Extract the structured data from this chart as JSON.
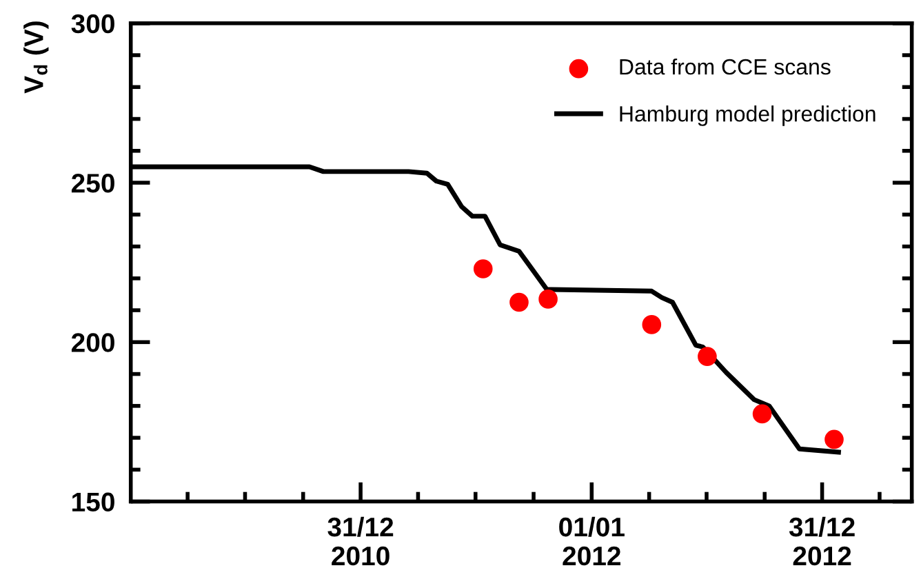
{
  "chart_data": {
    "type": "line",
    "ylabel": "V$_{d}$ (V)",
    "xlim": [
      "2010-01-01",
      "2013-05-22"
    ],
    "ylim": [
      150,
      300
    ],
    "xticks": [
      {
        "value": "2010-04-01",
        "label": null
      },
      {
        "value": "2010-07-01",
        "label": null
      },
      {
        "value": "2010-10-01",
        "label": null
      },
      {
        "value": "2010-12-31",
        "label": "31/12\n2010"
      },
      {
        "value": "2011-04-01",
        "label": null
      },
      {
        "value": "2011-07-01",
        "label": null
      },
      {
        "value": "2011-10-01",
        "label": null
      },
      {
        "value": "2012-01-01",
        "label": "01/01\n2012"
      },
      {
        "value": "2012-04-01",
        "label": null
      },
      {
        "value": "2012-07-01",
        "label": null
      },
      {
        "value": "2012-10-01",
        "label": null
      },
      {
        "value": "2012-12-31",
        "label": "31/12\n2012"
      },
      {
        "value": "2013-04-01",
        "label": null
      }
    ],
    "yticks": [
      150,
      {
        "value": 160,
        "label": null
      },
      {
        "value": 170,
        "label": null
      },
      {
        "value": 180,
        "label": null
      },
      {
        "value": 190,
        "label": null
      },
      200,
      {
        "value": 210,
        "label": null
      },
      {
        "value": 220,
        "label": null
      },
      {
        "value": 230,
        "label": null
      },
      {
        "value": 240,
        "label": null
      },
      250,
      {
        "value": 260,
        "label": null
      },
      {
        "value": 270,
        "label": null
      },
      {
        "value": 280,
        "label": null
      },
      {
        "value": 290,
        "label": null
      },
      300
    ],
    "grid": false,
    "legend": "top right",
    "series": [
      {
        "name": "Data from CCE scans",
        "type": "scatter",
        "marker": "circle",
        "color": "#ff0000",
        "x": [
          "2011-07-13",
          "2011-09-08",
          "2011-10-24",
          "2012-04-05",
          "2012-07-02",
          "2012-09-27",
          "2013-01-19"
        ],
        "values": [
          223,
          212.5,
          213.5,
          205.5,
          195.5,
          177.5,
          169.5
        ]
      },
      {
        "name": "Hamburg model prediction",
        "marker": "none",
        "line_style": "solid",
        "color": "#000000",
        "x": [
          "2010-01-01",
          "2010-10-11",
          "2010-11-02",
          "2011-03-17",
          "2011-04-15",
          "2011-04-30",
          "2011-05-18",
          "2011-06-09",
          "2011-06-26",
          "2011-07-16",
          "2011-08-09",
          "2011-09-08",
          "2011-10-22",
          "2011-10-29",
          "2012-04-05",
          "2012-04-21",
          "2012-05-08",
          "2012-06-14",
          "2012-06-25",
          "2012-08-01",
          "2012-09-14",
          "2012-10-08",
          "2012-11-25",
          "2013-01-26"
        ],
        "values": [
          255,
          255,
          253.5,
          253.5,
          253,
          250.5,
          249.5,
          242.5,
          239.5,
          239.5,
          230.5,
          228.5,
          216.5,
          216.5,
          216,
          214,
          212.5,
          199,
          198.5,
          190.5,
          182,
          180,
          166.5,
          165.5
        ]
      }
    ]
  }
}
